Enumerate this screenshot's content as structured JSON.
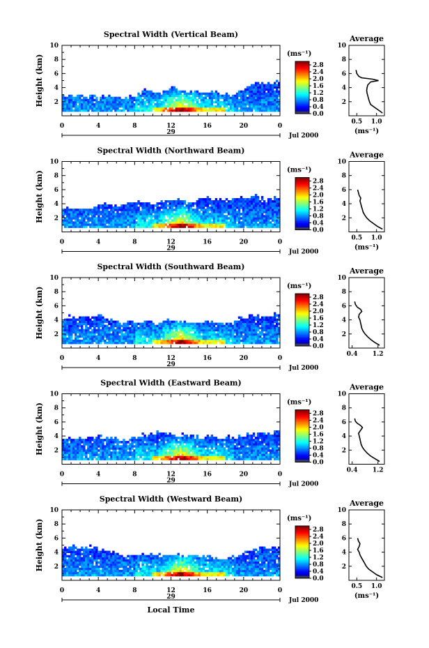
{
  "chart_data": {
    "type": "heatmap",
    "panels": [
      {
        "title": "Spectral Width (Vertical Beam)",
        "avg_title": "Average",
        "ylabel": "Height (km)",
        "ylim": [
          0,
          10
        ],
        "yticks": [
          "2",
          "4",
          "6",
          "8",
          "10"
        ],
        "xlim": [
          0,
          24
        ],
        "xticks": [
          "0",
          "4",
          "8",
          "12",
          "16",
          "20",
          "0"
        ],
        "day_label": "29",
        "date_label": "Jul 2000",
        "unit": "(ms⁻¹)",
        "colorbar_ticks": [
          "0.0",
          "0.4",
          "0.8",
          "1.2",
          "1.6",
          "2.0",
          "2.4",
          "2.8"
        ],
        "avg_xticks": [
          "0.5",
          "1.0"
        ],
        "avg_xlim": [
          0.3,
          1.2
        ],
        "avg_xlabel": "(ms⁻¹)",
        "average_profile": {
          "height": [
            0.4,
            0.8,
            1.2,
            1.6,
            2.0,
            2.4,
            2.8,
            3.2,
            3.6,
            4.0,
            4.4,
            4.8,
            5.0,
            5.2,
            5.4,
            5.6,
            6.0,
            6.5
          ],
          "width": [
            1.15,
            1.05,
            0.95,
            0.85,
            0.82,
            0.8,
            0.78,
            0.76,
            0.75,
            0.76,
            0.78,
            0.85,
            1.05,
            0.9,
            0.62,
            0.55,
            0.5,
            0.48
          ]
        },
        "echo_tops": [
          2.6,
          2.4,
          2.6,
          2.8,
          2.6,
          2.8,
          2.5,
          2.4,
          2.6,
          2.3,
          2.2,
          2.4,
          2.6,
          3.6,
          3.4,
          3.0,
          3.2,
          3.6,
          4.1,
          3.5,
          3.2,
          3.6,
          3.2,
          3.0,
          3.4,
          3.1,
          2.8,
          2.6,
          3.0,
          3.3,
          4.0,
          4.4,
          4.5,
          4.4,
          4.2,
          4.8
        ]
      },
      {
        "title": "Spectral Width (Northward Beam)",
        "avg_title": "Average",
        "ylabel": "Height (km)",
        "ylim": [
          0,
          10
        ],
        "yticks": [
          "2",
          "4",
          "6",
          "8",
          "10"
        ],
        "xlim": [
          0,
          24
        ],
        "xticks": [
          "0",
          "4",
          "8",
          "12",
          "16",
          "20",
          "0"
        ],
        "day_label": "29",
        "date_label": "Jul 2000",
        "unit": "(ms⁻¹)",
        "colorbar_ticks": [
          "0.0",
          "0.4",
          "0.8",
          "1.2",
          "1.6",
          "2.0",
          "2.4",
          "2.8"
        ],
        "avg_xticks": [
          "0.5",
          "1.0"
        ],
        "avg_xlim": [
          0.3,
          1.2
        ],
        "avg_xlabel": "(ms⁻¹)",
        "average_profile": {
          "height": [
            0.4,
            0.8,
            1.2,
            1.6,
            2.0,
            2.4,
            2.8,
            3.2,
            3.6,
            4.0,
            4.4,
            4.8,
            5.2,
            5.6,
            6.0
          ],
          "width": [
            1.15,
            1.02,
            0.92,
            0.82,
            0.75,
            0.7,
            0.66,
            0.64,
            0.62,
            0.6,
            0.58,
            0.6,
            0.56,
            0.54,
            0.52
          ]
        },
        "echo_tops": [
          3.2,
          3.0,
          3.1,
          3.3,
          3.0,
          3.2,
          3.8,
          3.9,
          3.6,
          3.5,
          3.8,
          4.0,
          4.0,
          3.9,
          3.8,
          3.7,
          4.1,
          4.3,
          4.2,
          4.5,
          4.2,
          4.0,
          4.5,
          4.6,
          4.4,
          4.2,
          4.2,
          4.4,
          4.8,
          4.7,
          4.6,
          4.9,
          4.7,
          4.5,
          4.7,
          4.8
        ]
      },
      {
        "title": "Spectral Width (Southward Beam)",
        "avg_title": "Average",
        "ylabel": "Height (km)",
        "ylim": [
          0,
          10
        ],
        "yticks": [
          "2",
          "4",
          "6",
          "8",
          "10"
        ],
        "xlim": [
          0,
          24
        ],
        "xticks": [
          "0",
          "4",
          "8",
          "12",
          "16",
          "20",
          "0"
        ],
        "day_label": "29",
        "date_label": "Jul 2000",
        "unit": "(ms⁻¹)",
        "colorbar_ticks": [
          "0.0",
          "0.4",
          "0.8",
          "1.2",
          "1.6",
          "2.0",
          "2.4",
          "2.8"
        ],
        "avg_xticks": [
          "0.4",
          "1.2"
        ],
        "avg_xlim": [
          0.3,
          1.4
        ],
        "avg_xlabel": "",
        "average_profile": {
          "height": [
            0.4,
            0.8,
            1.2,
            1.6,
            2.0,
            2.4,
            2.8,
            3.2,
            3.6,
            4.0,
            4.4,
            4.8,
            5.2,
            5.5,
            5.8,
            6.2,
            6.6
          ],
          "width": [
            1.25,
            1.1,
            0.98,
            0.88,
            0.8,
            0.74,
            0.7,
            0.68,
            0.66,
            0.64,
            0.6,
            0.62,
            0.7,
            0.66,
            0.56,
            0.5,
            0.48
          ]
        },
        "echo_tops": [
          3.6,
          4.2,
          4.0,
          4.3,
          4.0,
          4.2,
          4.6,
          3.9,
          3.7,
          3.6,
          3.5,
          3.6,
          3.4,
          3.6,
          3.5,
          3.2,
          3.5,
          3.8,
          3.9,
          3.6,
          3.4,
          3.5,
          3.3,
          3.5,
          3.6,
          3.3,
          3.2,
          3.4,
          3.8,
          4.0,
          4.2,
          4.3,
          4.4,
          4.2,
          4.5,
          4.7
        ]
      },
      {
        "title": "Spectral Width (Eastward Beam)",
        "avg_title": "Average",
        "ylabel": "Height (km)",
        "ylim": [
          0,
          10
        ],
        "yticks": [
          "2",
          "4",
          "6",
          "8",
          "10"
        ],
        "xlim": [
          0,
          24
        ],
        "xticks": [
          "0",
          "4",
          "8",
          "12",
          "16",
          "20",
          "0"
        ],
        "day_label": "29",
        "date_label": "Jul 2000",
        "unit": "(ms⁻¹)",
        "colorbar_ticks": [
          "0.0",
          "0.4",
          "0.8",
          "1.2",
          "1.6",
          "2.0",
          "2.4",
          "2.8"
        ],
        "avg_xticks": [
          "0.4",
          "1.2"
        ],
        "avg_xlim": [
          0.3,
          1.4
        ],
        "avg_xlabel": "",
        "average_profile": {
          "height": [
            0.4,
            0.8,
            1.2,
            1.6,
            2.0,
            2.4,
            2.8,
            3.2,
            3.6,
            4.0,
            4.4,
            4.8,
            5.2,
            5.5,
            5.8,
            6.1,
            6.5
          ],
          "width": [
            1.25,
            1.1,
            0.96,
            0.86,
            0.78,
            0.72,
            0.68,
            0.66,
            0.64,
            0.62,
            0.6,
            0.66,
            0.72,
            0.66,
            0.56,
            0.5,
            0.48
          ]
        },
        "echo_tops": [
          3.4,
          3.5,
          3.3,
          3.6,
          3.5,
          3.7,
          3.6,
          3.4,
          3.5,
          3.2,
          3.3,
          3.6,
          3.8,
          3.9,
          3.8,
          4.2,
          4.4,
          4.1,
          3.9,
          3.8,
          4.0,
          3.7,
          3.5,
          3.6,
          3.8,
          3.4,
          3.3,
          3.6,
          3.5,
          3.8,
          4.0,
          4.3,
          4.4,
          4.0,
          4.2,
          4.5
        ]
      },
      {
        "title": "Spectral Width (Westward Beam)",
        "avg_title": "Average",
        "ylabel": "Height (km)",
        "ylim": [
          0,
          10
        ],
        "yticks": [
          "2",
          "4",
          "6",
          "8",
          "10"
        ],
        "xlim": [
          0,
          24
        ],
        "xticks": [
          "0",
          "4",
          "8",
          "12",
          "16",
          "20",
          "0"
        ],
        "day_label": "29",
        "date_label": "Jul 2000",
        "xlabel": "Local Time",
        "unit": "(ms⁻¹)",
        "colorbar_ticks": [
          "0.0",
          "0.4",
          "0.8",
          "1.2",
          "1.6",
          "2.0",
          "2.4",
          "2.8"
        ],
        "avg_xticks": [
          "0.5",
          "1.0"
        ],
        "avg_xlim": [
          0.3,
          1.2
        ],
        "avg_xlabel": "(ms⁻¹)",
        "average_profile": {
          "height": [
            0.4,
            0.8,
            1.2,
            1.6,
            2.0,
            2.4,
            2.8,
            3.2,
            3.6,
            4.0,
            4.4,
            4.8,
            5.2,
            5.6,
            6.0
          ],
          "width": [
            1.15,
            1.0,
            0.9,
            0.8,
            0.74,
            0.7,
            0.66,
            0.62,
            0.58,
            0.56,
            0.52,
            0.56,
            0.58,
            0.54,
            0.52
          ]
        },
        "echo_tops": [
          4.2,
          4.5,
          4.6,
          4.4,
          4.4,
          4.5,
          4.2,
          4.0,
          3.8,
          3.6,
          3.2,
          3.4,
          3.3,
          3.4,
          3.6,
          3.3,
          3.2,
          3.5,
          3.5,
          3.3,
          3.2,
          3.4,
          3.2,
          3.1,
          3.3,
          3.0,
          2.8,
          3.2,
          3.3,
          3.5,
          3.6,
          4.0,
          4.6,
          4.2,
          4.4,
          4.6
        ]
      }
    ]
  }
}
